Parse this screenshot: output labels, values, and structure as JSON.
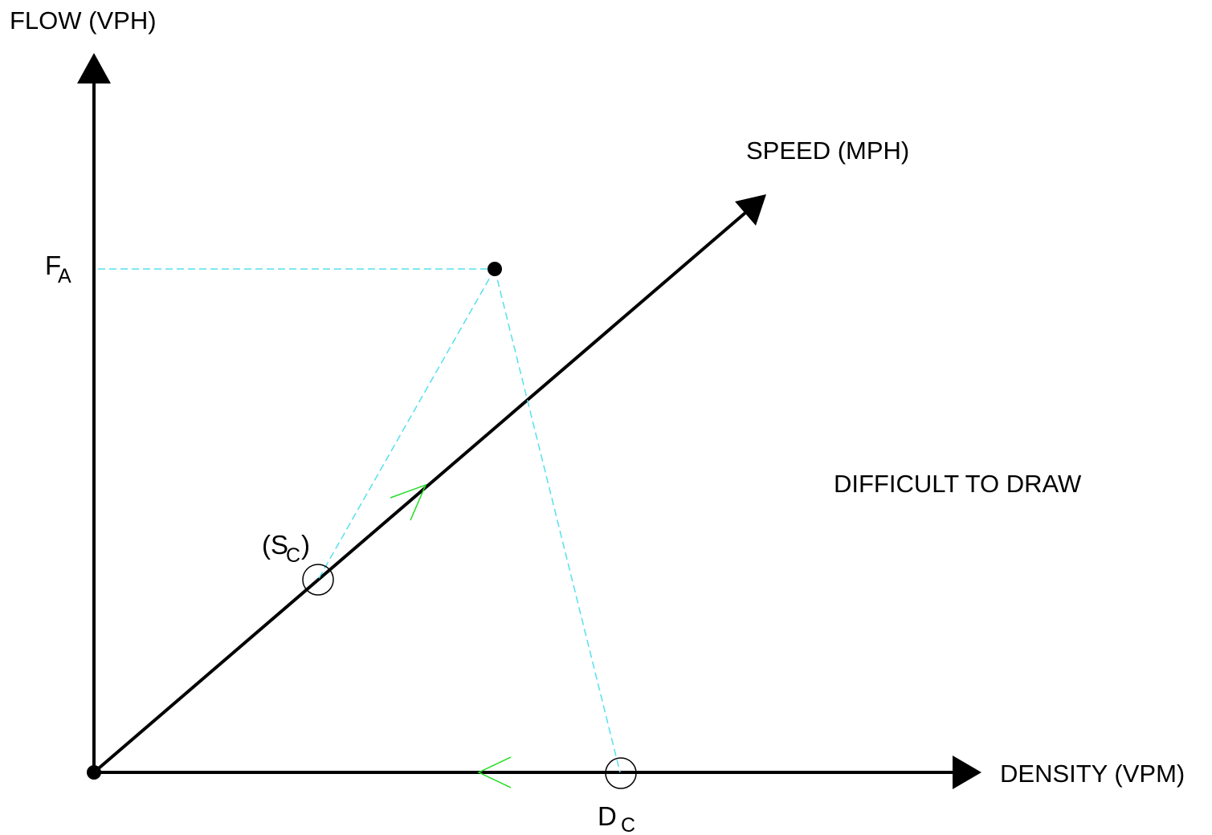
{
  "diagram": {
    "flow_axis_label": "FLOW (VPH)",
    "speed_axis_label": "SPEED (MPH)",
    "density_axis_label": "DENSITY (VPM)",
    "fa_main": "F",
    "fa_sub": "A",
    "sc_open": "(S",
    "sc_sub": "C",
    "sc_close": ")",
    "dc_main": "D",
    "dc_sub": "C",
    "note": "DIFFICULT TO DRAW"
  },
  "colors": {
    "axis": "#000000",
    "projection_line": "#55e0ee",
    "direction_arrow": "#22dd22"
  }
}
